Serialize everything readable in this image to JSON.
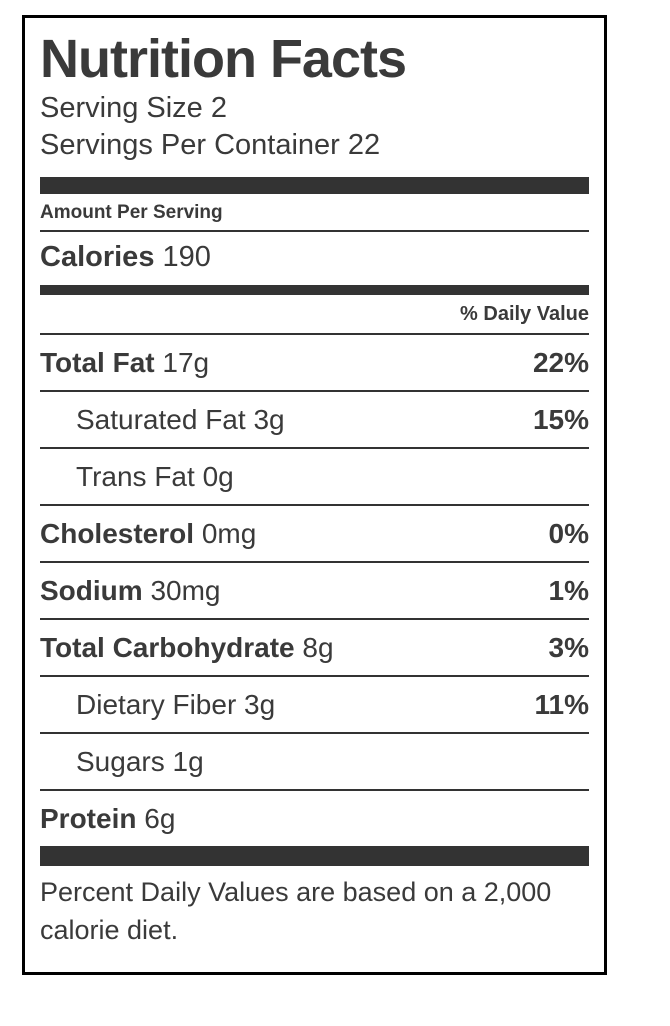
{
  "label": {
    "title": "Nutrition Facts",
    "serving_size": "Serving Size 2",
    "servings_per_container": "Servings Per Container 22",
    "amount_per_serving": "Amount Per Serving",
    "calories": {
      "label": "Calories",
      "value": "190"
    },
    "daily_value_header": "% Daily Value",
    "rows": [
      {
        "label": "Total Fat",
        "amount": "17g",
        "percent": "22%"
      },
      {
        "label": "Saturated Fat",
        "amount": "3g",
        "percent": "15%"
      },
      {
        "label": "Trans Fat",
        "amount": "0g",
        "percent": ""
      },
      {
        "label": "Cholesterol",
        "amount": "0mg",
        "percent": "0%"
      },
      {
        "label": "Sodium",
        "amount": "30mg",
        "percent": "1%"
      },
      {
        "label": "Total Carbohydrate",
        "amount": "8g",
        "percent": "3%"
      },
      {
        "label": "Dietary Fiber",
        "amount": "3g",
        "percent": "11%"
      },
      {
        "label": "Sugars",
        "amount": "1g",
        "percent": ""
      },
      {
        "label": "Protein",
        "amount": "6g",
        "percent": ""
      }
    ],
    "footnote": "Percent Daily Values are based on a 2,000 calorie diet."
  },
  "colors": {
    "text": "#3a3a3a",
    "bar": "#333333",
    "rule": "#333333",
    "border": "#000000"
  }
}
